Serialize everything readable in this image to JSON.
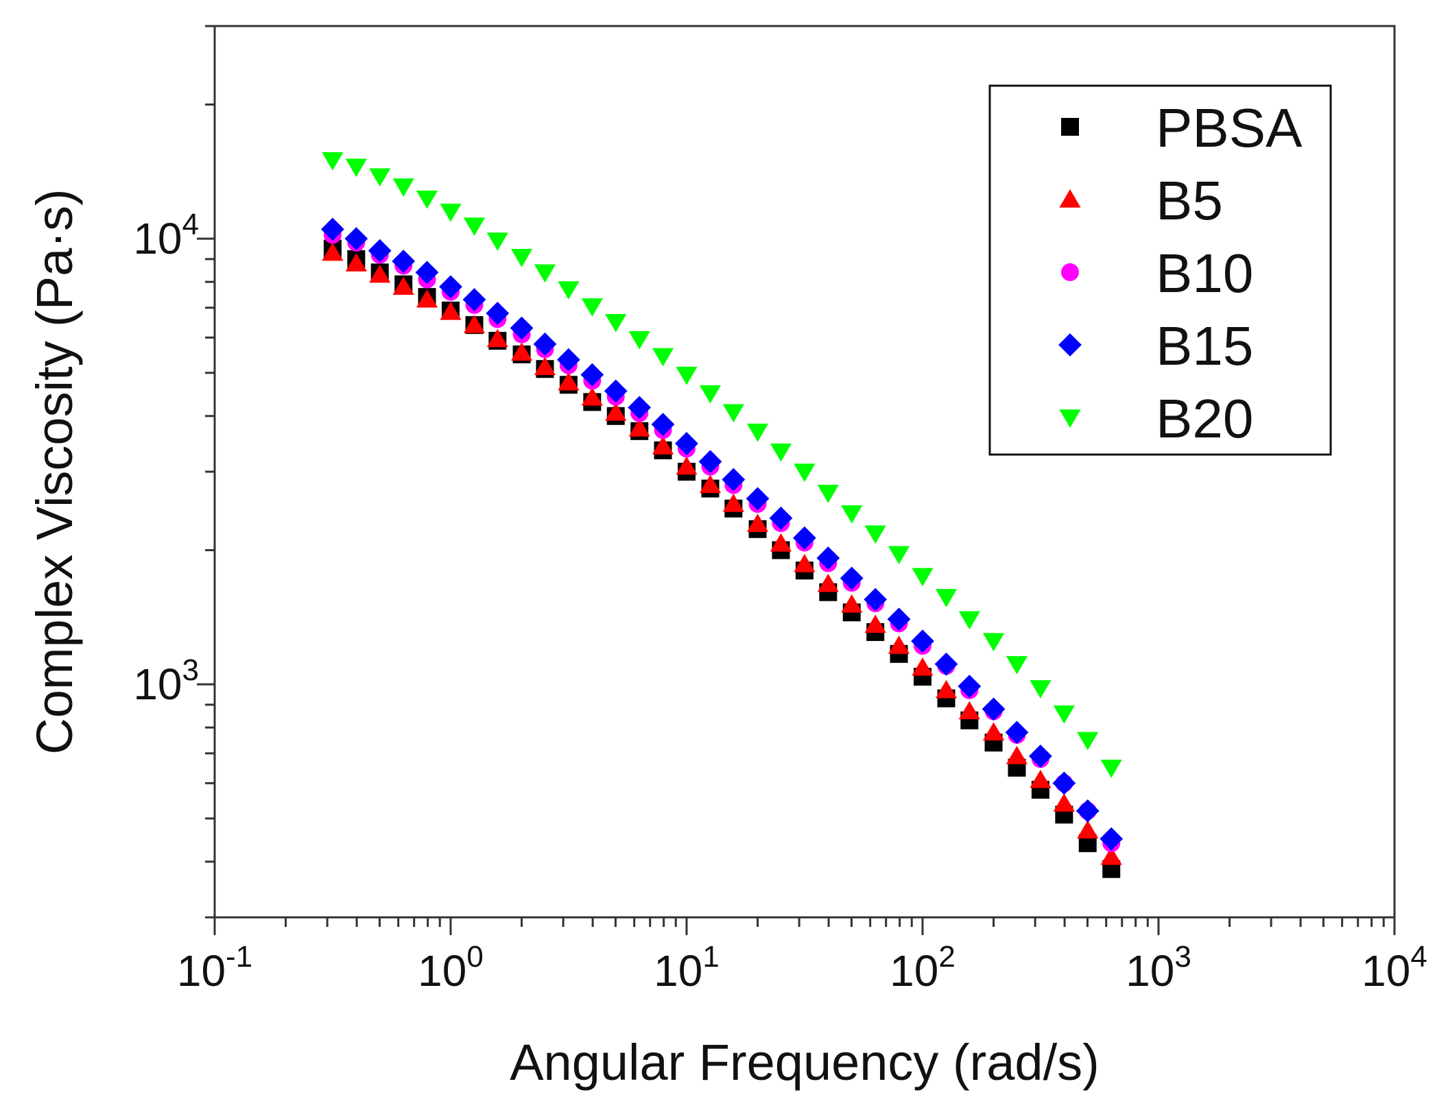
{
  "chart_data": {
    "type": "scatter",
    "xscale": "log",
    "yscale": "log",
    "xlim": [
      0.1,
      10000
    ],
    "ylim": [
      300,
      30000
    ],
    "xlabel": "Angular Frequency (rad/s)",
    "ylabel": "Complex Viscosity (Pa·s)",
    "x_ticks": [
      {
        "base": "10",
        "exp": "-1"
      },
      {
        "base": "10",
        "exp": "0"
      },
      {
        "base": "10",
        "exp": "1"
      },
      {
        "base": "10",
        "exp": "2"
      },
      {
        "base": "10",
        "exp": "3"
      },
      {
        "base": "10",
        "exp": "4"
      }
    ],
    "y_ticks": [
      {
        "base": "10",
        "exp": "3"
      },
      {
        "base": "10",
        "exp": "4"
      }
    ],
    "x": [
      0.316,
      0.398,
      0.501,
      0.631,
      0.794,
      1.0,
      1.26,
      1.58,
      2.0,
      2.51,
      3.16,
      3.98,
      5.01,
      6.31,
      7.94,
      10.0,
      12.6,
      15.8,
      20.0,
      25.1,
      31.6,
      39.8,
      50.1,
      63.1,
      79.4,
      100,
      126,
      158,
      200,
      251,
      316,
      398,
      501,
      631
    ],
    "series": [
      {
        "name": "PBSA",
        "marker": "square",
        "color": "#000000",
        "values": [
          9500,
          9000,
          8400,
          7900,
          7400,
          6900,
          6400,
          5900,
          5500,
          5100,
          4700,
          4300,
          4000,
          3700,
          3350,
          3000,
          2750,
          2480,
          2230,
          2000,
          1800,
          1610,
          1450,
          1310,
          1170,
          1040,
          930,
          830,
          740,
          650,
          580,
          510,
          440,
          385
        ]
      },
      {
        "name": "B5",
        "marker": "triangle-up",
        "color": "#ff0000",
        "values": [
          9300,
          8800,
          8300,
          7800,
          7300,
          6850,
          6400,
          5950,
          5550,
          5150,
          4760,
          4400,
          4070,
          3750,
          3420,
          3080,
          2800,
          2540,
          2290,
          2070,
          1860,
          1680,
          1510,
          1360,
          1220,
          1090,
          970,
          870,
          780,
          690,
          610,
          540,
          470,
          410
        ]
      },
      {
        "name": "B10",
        "marker": "circle",
        "color": "#ff00ff",
        "values": [
          10200,
          9800,
          9200,
          8700,
          8100,
          7600,
          7100,
          6600,
          6100,
          5650,
          5200,
          4800,
          4420,
          4060,
          3720,
          3380,
          3080,
          2800,
          2540,
          2300,
          2080,
          1870,
          1690,
          1520,
          1370,
          1220,
          1100,
          970,
          870,
          770,
          680,
          600,
          520,
          440
        ]
      },
      {
        "name": "B15",
        "marker": "diamond",
        "color": "#0000ff",
        "values": [
          10500,
          10000,
          9400,
          8900,
          8400,
          7800,
          7300,
          6800,
          6300,
          5800,
          5350,
          4950,
          4550,
          4180,
          3830,
          3470,
          3160,
          2880,
          2610,
          2360,
          2130,
          1920,
          1730,
          1550,
          1400,
          1250,
          1110,
          990,
          880,
          780,
          690,
          600,
          520,
          450
        ]
      },
      {
        "name": "B20",
        "marker": "triangle-down",
        "color": "#00ff00",
        "values": [
          15000,
          14500,
          13800,
          13100,
          12300,
          11500,
          10700,
          9900,
          9100,
          8400,
          7700,
          7050,
          6500,
          5950,
          5450,
          4950,
          4500,
          4080,
          3690,
          3330,
          3000,
          2690,
          2420,
          2180,
          1960,
          1750,
          1570,
          1400,
          1250,
          1110,
          980,
          860,
          750,
          650
        ]
      }
    ],
    "legend": {
      "position": "top-right",
      "entries": [
        "PBSA",
        "B5",
        "B10",
        "B15",
        "B20"
      ]
    }
  }
}
